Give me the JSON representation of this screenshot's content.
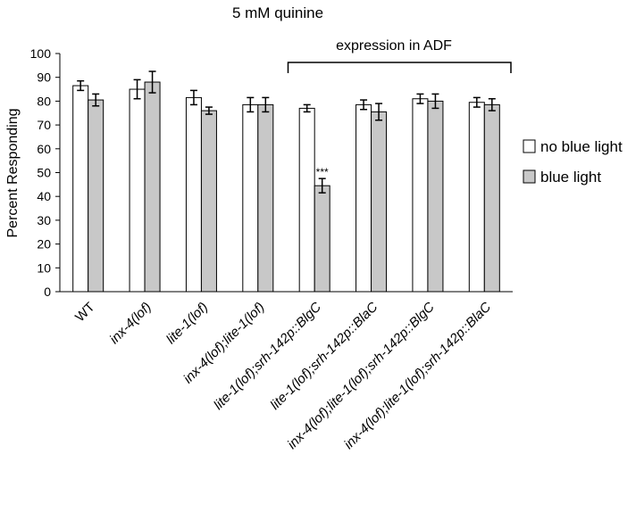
{
  "chart_data": {
    "type": "bar",
    "title": "5 mM quinine",
    "xlabel": "",
    "ylabel": "Percent Responding",
    "ylim": [
      0,
      100
    ],
    "yticks": [
      0,
      10,
      20,
      30,
      40,
      50,
      60,
      70,
      80,
      90,
      100
    ],
    "grid": false,
    "legend_position": "right",
    "categories": [
      "WT",
      "inx-4(lof)",
      "lite-1(lof)",
      "inx-4(lof);lite-1(lof)",
      "lite-1(lof);srh-142p::BlgC",
      "lite-1(lof);srh-142p::BlaC",
      "inx-4(lof);lite-1(lof);srh-142p::BlgC",
      "inx-4(lof);lite-1(lof);srh-142p::BlaC"
    ],
    "italic_categories": [
      false,
      true,
      true,
      true,
      true,
      true,
      true,
      true
    ],
    "series": [
      {
        "name": "no blue light",
        "color": "#ffffff",
        "values": [
          86.5,
          85,
          81.5,
          78.5,
          77,
          78.5,
          81,
          79.5
        ],
        "errors": [
          2,
          4,
          3,
          3,
          1.5,
          2,
          2,
          2
        ]
      },
      {
        "name": "blue light",
        "color": "#c8c8c8",
        "values": [
          80.5,
          88,
          76,
          78.5,
          44.5,
          75.5,
          80,
          78.5
        ],
        "errors": [
          2.5,
          4.5,
          1.5,
          3,
          3,
          3.5,
          3,
          2.5
        ]
      }
    ],
    "annotations": [
      {
        "text": "***",
        "category_index": 4,
        "series_index": 1
      }
    ],
    "bracket": {
      "text": "expression in ADF",
      "from_category": 4,
      "to_category": 7
    }
  }
}
